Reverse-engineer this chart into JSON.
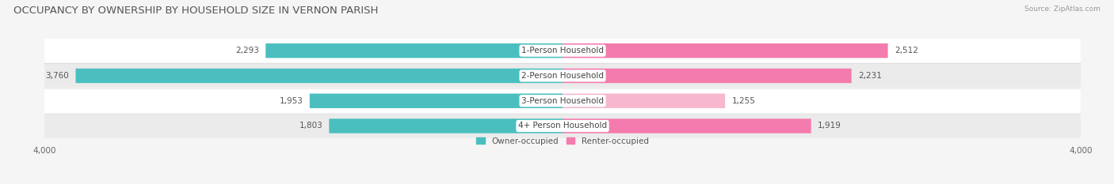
{
  "title": "OCCUPANCY BY OWNERSHIP BY HOUSEHOLD SIZE IN VERNON PARISH",
  "source": "Source: ZipAtlas.com",
  "categories": [
    "1-Person Household",
    "2-Person Household",
    "3-Person Household",
    "4+ Person Household"
  ],
  "owner_values": [
    2293,
    3760,
    1953,
    1803
  ],
  "renter_values": [
    2512,
    2231,
    1255,
    1919
  ],
  "owner_color": "#4bbfbf",
  "renter_colors": [
    "#f47bad",
    "#f47bad",
    "#f7b8cf",
    "#f47bad"
  ],
  "axis_max": 4000,
  "background_color": "#f5f5f5",
  "row_bg_colors": [
    "#ffffff",
    "#ebebeb",
    "#ffffff",
    "#ebebeb"
  ],
  "label_fontsize": 7.5,
  "title_fontsize": 9.5,
  "legend_labels": [
    "Owner-occupied",
    "Renter-occupied"
  ],
  "legend_renter_color": "#f47bad"
}
